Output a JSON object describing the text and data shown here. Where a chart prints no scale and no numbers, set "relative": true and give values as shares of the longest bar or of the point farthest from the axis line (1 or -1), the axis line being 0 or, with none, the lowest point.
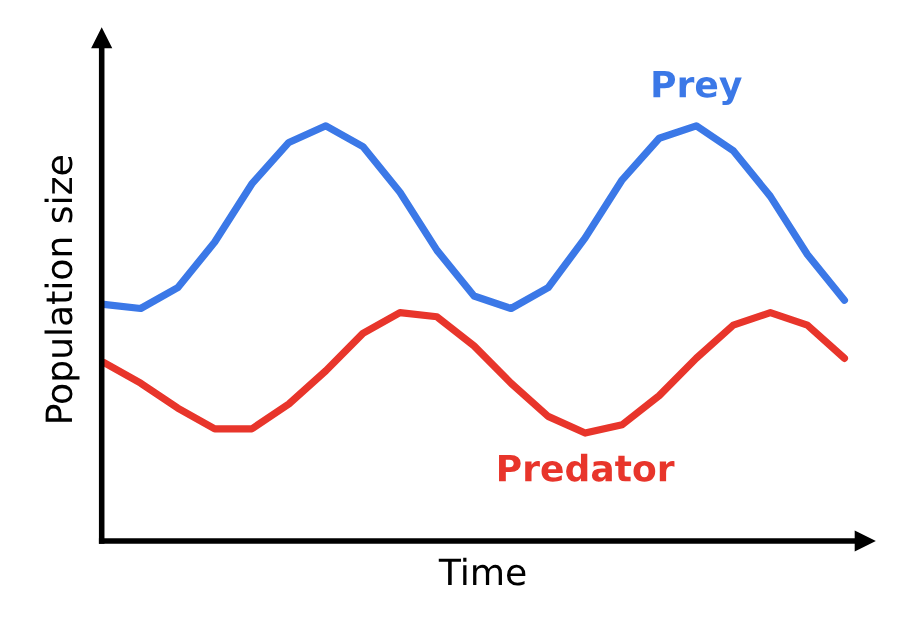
{
  "chart_data": {
    "type": "line",
    "relative": true,
    "xlabel": "Time",
    "ylabel": "Population size",
    "categories": [
      null,
      null,
      null,
      null,
      null,
      null,
      null,
      null,
      null,
      null,
      null,
      null,
      null,
      null,
      null,
      null,
      null,
      null,
      null,
      null,
      null
    ],
    "series": [
      {
        "name": "Prey",
        "color": "#3b78e7",
        "values": [
          0.57,
          0.56,
          0.61,
          0.72,
          0.86,
          0.96,
          1.0,
          0.95,
          0.84,
          0.7,
          0.59,
          0.56,
          0.61,
          0.73,
          0.87,
          0.97,
          1.0,
          0.94,
          0.83,
          0.69,
          0.58
        ]
      },
      {
        "name": "Predator",
        "color": "#e8352b",
        "values": [
          0.43,
          0.38,
          0.32,
          0.27,
          0.27,
          0.33,
          0.41,
          0.5,
          0.55,
          0.54,
          0.47,
          0.38,
          0.3,
          0.26,
          0.28,
          0.35,
          0.44,
          0.52,
          0.55,
          0.52,
          0.44
        ]
      }
    ],
    "legend": false,
    "marker": "none",
    "line_style": "solid"
  }
}
